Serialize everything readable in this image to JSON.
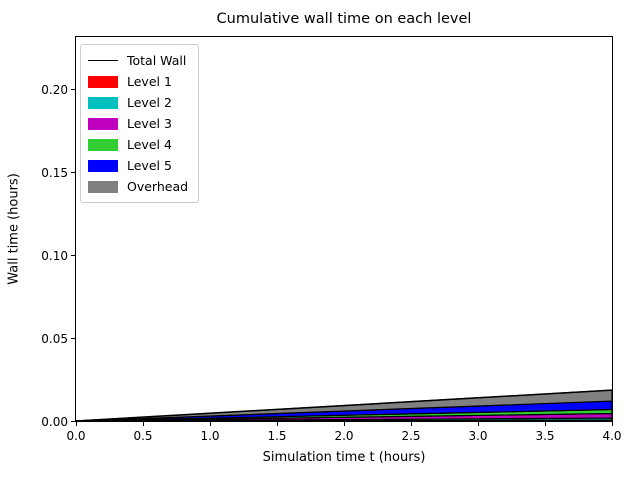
{
  "figure": {
    "title": "Cumulative wall time on each level",
    "xlabel": "Simulation time t (hours)",
    "ylabel": "Wall time (hours)"
  },
  "chart_data": {
    "type": "area",
    "stacked": true,
    "title": "Cumulative wall time on each level",
    "xlabel": "Simulation time t (hours)",
    "ylabel": "Wall time (hours)",
    "xlim": [
      0,
      4
    ],
    "ylim": [
      0,
      0.231
    ],
    "x": [
      0,
      4
    ],
    "series": [
      {
        "name": "Level 1",
        "color": "#ff0000",
        "values": [
          0,
          0.0006
        ]
      },
      {
        "name": "Level 2",
        "color": "#00bfbf",
        "values": [
          0,
          0.0012
        ]
      },
      {
        "name": "Level 3",
        "color": "#bf00bf",
        "values": [
          0,
          0.0027
        ]
      },
      {
        "name": "Level 4",
        "color": "#32cd32",
        "values": [
          0,
          0.0024
        ]
      },
      {
        "name": "Level 5",
        "color": "#0000ff",
        "values": [
          0,
          0.0051
        ]
      },
      {
        "name": "Overhead",
        "color": "#808080",
        "values": [
          0,
          0.0066
        ]
      }
    ],
    "total_line": {
      "name": "Total Wall",
      "color": "#000000",
      "values": [
        0,
        0.0186
      ]
    },
    "edge_color": "#000000",
    "x_ticks": [
      "0.0",
      "0.5",
      "1.0",
      "1.5",
      "2.0",
      "2.5",
      "3.0",
      "3.5",
      "4.0"
    ],
    "y_ticks": [
      "0.00",
      "0.05",
      "0.10",
      "0.15",
      "0.20"
    ],
    "grid": false,
    "legend": {
      "position": "upper left",
      "entries": [
        {
          "label": "Total Wall",
          "handle": "line",
          "color": "#000000"
        },
        {
          "label": "Level 1",
          "handle": "patch",
          "color": "#ff0000"
        },
        {
          "label": "Level 2",
          "handle": "patch",
          "color": "#00bfbf"
        },
        {
          "label": "Level 3",
          "handle": "patch",
          "color": "#bf00bf"
        },
        {
          "label": "Level 4",
          "handle": "patch",
          "color": "#32cd32"
        },
        {
          "label": "Level 5",
          "handle": "patch",
          "color": "#0000ff"
        },
        {
          "label": "Overhead",
          "handle": "patch",
          "color": "#808080"
        }
      ]
    }
  }
}
